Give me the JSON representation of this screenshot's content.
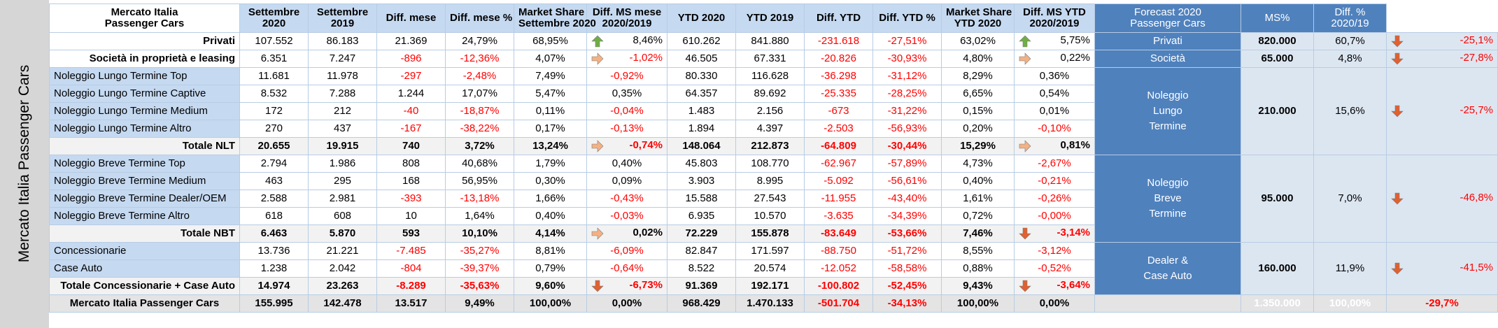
{
  "side_label": "Mercato Italia Passenger Cars",
  "headers": {
    "title_l1": "Mercato Italia",
    "title_l2": "Passenger Cars",
    "c1": [
      "Settembre",
      "2020"
    ],
    "c2": [
      "Settembre",
      "2019"
    ],
    "c3": [
      "Diff. mese",
      ""
    ],
    "c4": [
      "Diff. mese %",
      ""
    ],
    "c5": [
      "Market Share",
      "Settembre 2020"
    ],
    "c6": [
      "Diff. MS mese",
      "2020/2019"
    ],
    "c7": [
      "YTD 2020",
      ""
    ],
    "c8": [
      "YTD 2019",
      ""
    ],
    "c9": [
      "Diff. YTD",
      ""
    ],
    "c10": [
      "Diff. YTD %",
      ""
    ],
    "c11": [
      "Market Share",
      "YTD 2020"
    ],
    "c12": [
      "Diff. MS YTD",
      "2020/2019"
    ],
    "fc_l1": "Forecast 2020",
    "fc_l2": "Passenger Cars",
    "ms": "MS%",
    "diff_l1": "Diff. %",
    "diff_l2": "2020/19"
  },
  "rows": {
    "privati": [
      "Privati",
      "107.552",
      "86.183",
      "21.369",
      "24,79%",
      "68,95%",
      "8,46%",
      "610.262",
      "841.880",
      "-231.618",
      "-27,51%",
      "63,02%",
      "5,75%"
    ],
    "societa": [
      "Società in proprietà e leasing",
      "6.351",
      "7.247",
      "-896",
      "-12,36%",
      "4,07%",
      "-1,02%",
      "46.505",
      "67.331",
      "-20.826",
      "-30,93%",
      "4,80%",
      "0,22%"
    ],
    "nlt_top": [
      "Noleggio Lungo Termine Top",
      "11.681",
      "11.978",
      "-297",
      "-2,48%",
      "7,49%",
      "-0,92%",
      "80.330",
      "116.628",
      "-36.298",
      "-31,12%",
      "8,29%",
      "0,36%"
    ],
    "nlt_captive": [
      "Noleggio Lungo Termine Captive",
      "8.532",
      "7.288",
      "1.244",
      "17,07%",
      "5,47%",
      "0,35%",
      "64.357",
      "89.692",
      "-25.335",
      "-28,25%",
      "6,65%",
      "0,54%"
    ],
    "nlt_medium": [
      "Noleggio Lungo Termine Medium",
      "172",
      "212",
      "-40",
      "-18,87%",
      "0,11%",
      "-0,04%",
      "1.483",
      "2.156",
      "-673",
      "-31,22%",
      "0,15%",
      "0,01%"
    ],
    "nlt_altro": [
      "Noleggio Lungo Termine Altro",
      "270",
      "437",
      "-167",
      "-38,22%",
      "0,17%",
      "-0,13%",
      "1.894",
      "4.397",
      "-2.503",
      "-56,93%",
      "0,20%",
      "-0,10%"
    ],
    "tot_nlt": [
      "Totale NLT",
      "20.655",
      "19.915",
      "740",
      "3,72%",
      "13,24%",
      "-0,74%",
      "148.064",
      "212.873",
      "-64.809",
      "-30,44%",
      "15,29%",
      "0,81%"
    ],
    "nbt_top": [
      "Noleggio Breve Termine Top",
      "2.794",
      "1.986",
      "808",
      "40,68%",
      "1,79%",
      "0,40%",
      "45.803",
      "108.770",
      "-62.967",
      "-57,89%",
      "4,73%",
      "-2,67%"
    ],
    "nbt_medium": [
      "Noleggio Breve Termine Medium",
      "463",
      "295",
      "168",
      "56,95%",
      "0,30%",
      "0,09%",
      "3.903",
      "8.995",
      "-5.092",
      "-56,61%",
      "0,40%",
      "-0,21%"
    ],
    "nbt_dealer": [
      "Noleggio Breve Termine Dealer/OEM",
      "2.588",
      "2.981",
      "-393",
      "-13,18%",
      "1,66%",
      "-0,43%",
      "15.588",
      "27.543",
      "-11.955",
      "-43,40%",
      "1,61%",
      "-0,26%"
    ],
    "nbt_altro": [
      "Noleggio Breve Termine Altro",
      "618",
      "608",
      "10",
      "1,64%",
      "0,40%",
      "-0,03%",
      "6.935",
      "10.570",
      "-3.635",
      "-34,39%",
      "0,72%",
      "-0,00%"
    ],
    "tot_nbt": [
      "Totale NBT",
      "6.463",
      "5.870",
      "593",
      "10,10%",
      "4,14%",
      "0,02%",
      "72.229",
      "155.878",
      "-83.649",
      "-53,66%",
      "7,46%",
      "-3,14%"
    ],
    "conc": [
      "Concessionarie",
      "13.736",
      "21.221",
      "-7.485",
      "-35,27%",
      "8,81%",
      "-6,09%",
      "82.847",
      "171.597",
      "-88.750",
      "-51,72%",
      "8,55%",
      "-3,12%"
    ],
    "case": [
      "Case Auto",
      "1.238",
      "2.042",
      "-804",
      "-39,37%",
      "0,79%",
      "-0,64%",
      "8.522",
      "20.574",
      "-12.052",
      "-58,58%",
      "0,88%",
      "-0,52%"
    ],
    "tot_cc": [
      "Totale Concessionarie + Case Auto",
      "14.974",
      "23.263",
      "-8.289",
      "-35,63%",
      "9,60%",
      "-6,73%",
      "91.369",
      "192.171",
      "-100.802",
      "-52,45%",
      "9,43%",
      "-3,64%"
    ],
    "grand": [
      "Mercato Italia Passenger Cars",
      "155.995",
      "142.478",
      "13.517",
      "9,49%",
      "100,00%",
      "0,00%",
      "968.429",
      "1.470.133",
      "-501.704",
      "-34,13%",
      "100,00%",
      "0,00%"
    ]
  },
  "forecast": {
    "privati": {
      "label": "Privati",
      "value": "820.000",
      "ms": "60,7%",
      "diff": "-25,1%"
    },
    "societa": {
      "label": "Società",
      "value": "65.000",
      "ms": "4,8%",
      "diff": "-27,8%"
    },
    "nlt": {
      "label_lines": [
        "Noleggio",
        "Lungo",
        "Termine"
      ],
      "value": "210.000",
      "ms": "15,6%",
      "diff": "-25,7%"
    },
    "nbt": {
      "label_lines": [
        "Noleggio",
        "Breve",
        "Termine"
      ],
      "value": "95.000",
      "ms": "7,0%",
      "diff": "-46,8%"
    },
    "dealer": {
      "label_lines": [
        "Dealer &",
        "Case Auto"
      ],
      "value": "160.000",
      "ms": "11,9%",
      "diff": "-41,5%"
    },
    "total": {
      "value": "1.350.000",
      "ms": "100,00%",
      "diff": "-29,7%"
    }
  },
  "icons": {
    "arrow_up": {
      "name": "arrow-up-icon",
      "color": "#70ad47"
    },
    "arrow_right": {
      "name": "arrow-right-icon",
      "color": "#f4b183"
    },
    "arrow_down": {
      "name": "arrow-down-icon",
      "color": "#e06030"
    }
  },
  "colors": {
    "header_light": "#c5d9f1",
    "header_dark": "#4f81bd",
    "negative": "#ff0000"
  }
}
